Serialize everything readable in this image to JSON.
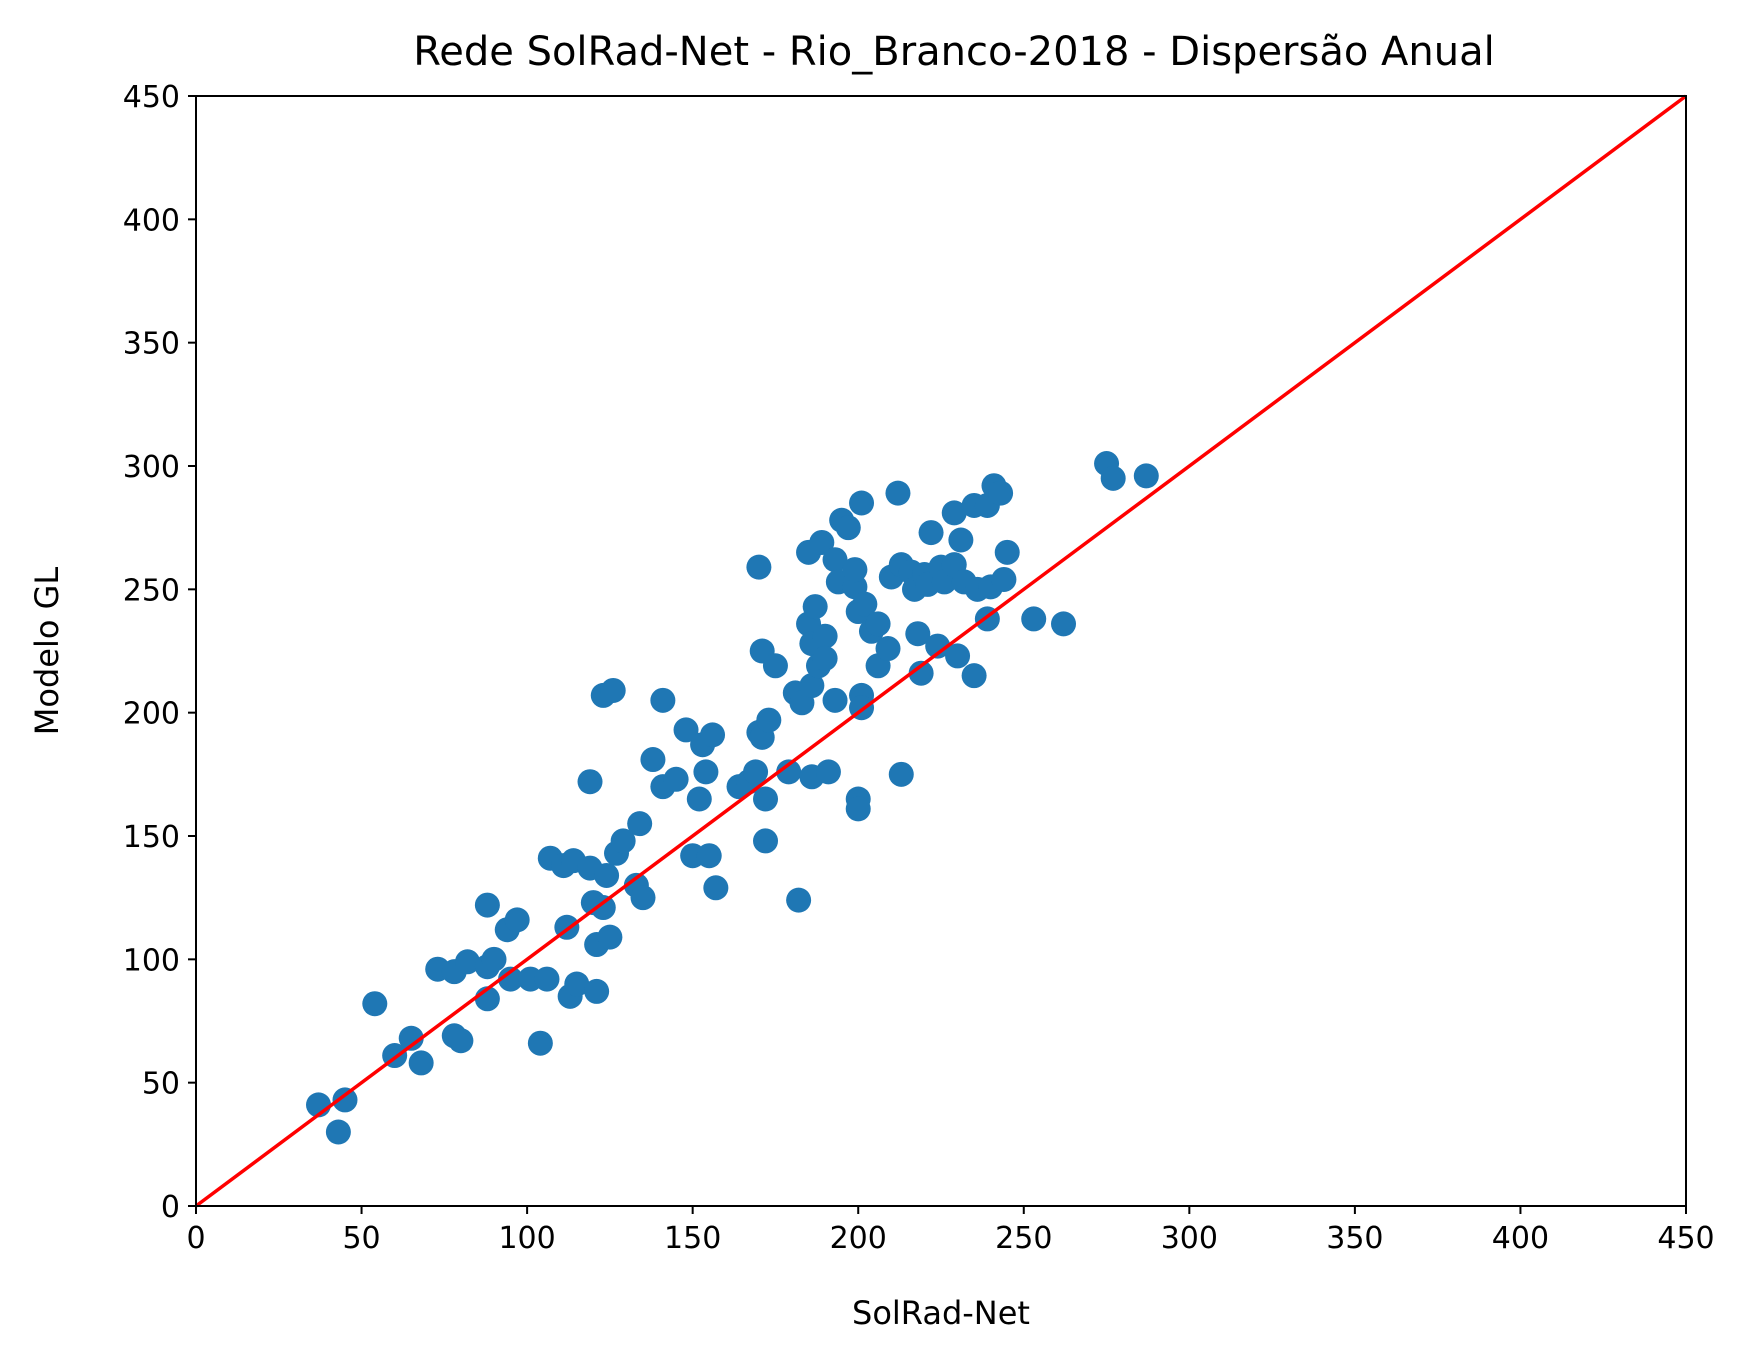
{
  "chart_data": {
    "type": "scatter",
    "title": "Rede SolRad-Net - Rio_Branco-2018 - Dispersão Anual",
    "xlabel": "SolRad-Net",
    "ylabel": "Modelo GL",
    "xlim": [
      0,
      450
    ],
    "ylim": [
      0,
      450
    ],
    "xticks": [
      "0",
      "50",
      "100",
      "150",
      "200",
      "250",
      "300",
      "350",
      "400",
      "450"
    ],
    "yticks": [
      "0",
      "50",
      "100",
      "150",
      "200",
      "250",
      "300",
      "350",
      "400",
      "450"
    ],
    "grid": false,
    "legend": "none",
    "series": [
      {
        "color": "#1f77b4",
        "points": [
          [
            37,
            41
          ],
          [
            43,
            30
          ],
          [
            45,
            43
          ],
          [
            54,
            82
          ],
          [
            60,
            61
          ],
          [
            65,
            68
          ],
          [
            68,
            58
          ],
          [
            73,
            96
          ],
          [
            78,
            95
          ],
          [
            78,
            69
          ],
          [
            80,
            67
          ],
          [
            82,
            99
          ],
          [
            88,
            97
          ],
          [
            88,
            122
          ],
          [
            88,
            84
          ],
          [
            90,
            100
          ],
          [
            94,
            112
          ],
          [
            95,
            92
          ],
          [
            97,
            116
          ],
          [
            101,
            92
          ],
          [
            104,
            66
          ],
          [
            106,
            92
          ],
          [
            107,
            141
          ],
          [
            111,
            138
          ],
          [
            112,
            113
          ],
          [
            113,
            85
          ],
          [
            114,
            140
          ],
          [
            115,
            90
          ],
          [
            119,
            137
          ],
          [
            119,
            172
          ],
          [
            120,
            123
          ],
          [
            121,
            106
          ],
          [
            121,
            87
          ],
          [
            123,
            207
          ],
          [
            123,
            121
          ],
          [
            124,
            134
          ],
          [
            125,
            109
          ],
          [
            126,
            209
          ],
          [
            127,
            143
          ],
          [
            129,
            148
          ],
          [
            133,
            130
          ],
          [
            134,
            155
          ],
          [
            135,
            125
          ],
          [
            138,
            181
          ],
          [
            141,
            205
          ],
          [
            141,
            170
          ],
          [
            145,
            173
          ],
          [
            148,
            193
          ],
          [
            150,
            142
          ],
          [
            152,
            165
          ],
          [
            153,
            187
          ],
          [
            154,
            176
          ],
          [
            155,
            142
          ],
          [
            156,
            191
          ],
          [
            157,
            129
          ],
          [
            164,
            170
          ],
          [
            167,
            172
          ],
          [
            169,
            176
          ],
          [
            170,
            192
          ],
          [
            171,
            190
          ],
          [
            170,
            259
          ],
          [
            171,
            225
          ],
          [
            172,
            165
          ],
          [
            172,
            148
          ],
          [
            173,
            197
          ],
          [
            175,
            219
          ],
          [
            179,
            176
          ],
          [
            181,
            208
          ],
          [
            182,
            124
          ],
          [
            183,
            204
          ],
          [
            185,
            265
          ],
          [
            185,
            236
          ],
          [
            186,
            174
          ],
          [
            186,
            211
          ],
          [
            186,
            228
          ],
          [
            187,
            243
          ],
          [
            188,
            219
          ],
          [
            189,
            269
          ],
          [
            190,
            231
          ],
          [
            190,
            222
          ],
          [
            191,
            176
          ],
          [
            193,
            262
          ],
          [
            193,
            205
          ],
          [
            194,
            253
          ],
          [
            195,
            278
          ],
          [
            197,
            275
          ],
          [
            199,
            251
          ],
          [
            199,
            258
          ],
          [
            200,
            241
          ],
          [
            200,
            165
          ],
          [
            200,
            161
          ],
          [
            201,
            285
          ],
          [
            201,
            207
          ],
          [
            201,
            202
          ],
          [
            202,
            244
          ],
          [
            204,
            233
          ],
          [
            206,
            236
          ],
          [
            206,
            219
          ],
          [
            209,
            226
          ],
          [
            210,
            255
          ],
          [
            212,
            289
          ],
          [
            213,
            260
          ],
          [
            213,
            175
          ],
          [
            216,
            257
          ],
          [
            217,
            250
          ],
          [
            218,
            232
          ],
          [
            219,
            216
          ],
          [
            220,
            256
          ],
          [
            221,
            252
          ],
          [
            222,
            273
          ],
          [
            224,
            227
          ],
          [
            225,
            259
          ],
          [
            226,
            253
          ],
          [
            229,
            260
          ],
          [
            229,
            281
          ],
          [
            230,
            223
          ],
          [
            231,
            270
          ],
          [
            232,
            253
          ],
          [
            235,
            284
          ],
          [
            235,
            215
          ],
          [
            236,
            250
          ],
          [
            239,
            238
          ],
          [
            239,
            284
          ],
          [
            240,
            251
          ],
          [
            241,
            292
          ],
          [
            243,
            289
          ],
          [
            244,
            254
          ],
          [
            245,
            265
          ],
          [
            253,
            238
          ],
          [
            262,
            236
          ],
          [
            275,
            301
          ],
          [
            277,
            295
          ],
          [
            287,
            296
          ]
        ]
      }
    ],
    "reference_line": {
      "from": [
        0,
        0
      ],
      "to": [
        450,
        450
      ],
      "color": "#ff0000"
    }
  }
}
